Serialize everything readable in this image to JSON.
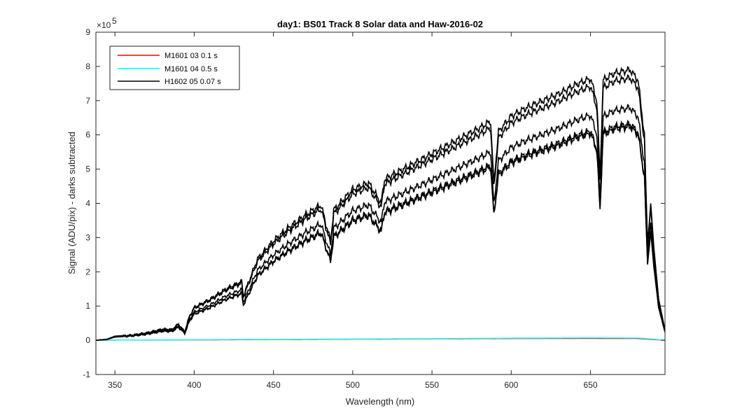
{
  "chart_data": {
    "type": "line",
    "title": "day1: BS01  Track 8 Solar data and Haw-2016-02",
    "xlabel": "Wavelength (nm)",
    "ylabel": "Signal (ADU/pix) - darks subtracted",
    "y_exponent_label": "×10",
    "y_exponent_power": "5",
    "xlim": [
      338,
      697
    ],
    "ylim": [
      -1,
      9
    ],
    "y_scale_factor": 100000,
    "grid": false,
    "legend_position": "top-left",
    "x_ticks": [
      "350",
      "400",
      "450",
      "500",
      "550",
      "600",
      "650"
    ],
    "x_tick_values": [
      350,
      400,
      450,
      500,
      550,
      600,
      650
    ],
    "y_ticks": [
      "-1",
      "0",
      "1",
      "2",
      "3",
      "4",
      "5",
      "6",
      "7",
      "8",
      "9"
    ],
    "y_tick_values": [
      -1,
      0,
      1,
      2,
      3,
      4,
      5,
      6,
      7,
      8,
      9
    ],
    "legend": [
      {
        "label": "M1601 03 0.1 s",
        "color": "#ff0000"
      },
      {
        "label": "M1601 04 0.5 s",
        "color": "#00ffff"
      },
      {
        "label": "H1602 05 0.07 s",
        "color": "#000000"
      }
    ],
    "series": [
      {
        "name": "M1601 03 0.1 s",
        "color": "#ff0000",
        "x": [
          338,
          350,
          400,
          450,
          500,
          550,
          600,
          650,
          680,
          690,
          697
        ],
        "values": [
          0,
          0.005,
          0.01,
          0.02,
          0.03,
          0.04,
          0.05,
          0.055,
          0.05,
          0.02,
          0
        ]
      },
      {
        "name": "M1601 04 0.5 s",
        "color": "#00ffff",
        "x": [
          338,
          350,
          400,
          450,
          500,
          550,
          600,
          650,
          680,
          690,
          697
        ],
        "values": [
          0,
          0.005,
          0.015,
          0.025,
          0.035,
          0.045,
          0.06,
          0.07,
          0.065,
          0.03,
          0
        ]
      },
      {
        "name": "H1602 05 0.07 s",
        "color": "#000000",
        "x": [
          338,
          345,
          350,
          360,
          370,
          380,
          386,
          390,
          394,
          397,
          400,
          410,
          420,
          430,
          431,
          440,
          450,
          460,
          470,
          480,
          486,
          488,
          500,
          510,
          518,
          520,
          530,
          540,
          550,
          560,
          570,
          580,
          587,
          589,
          592,
          600,
          610,
          620,
          630,
          640,
          650,
          654,
          656,
          658,
          665,
          675,
          680,
          684,
          686,
          688,
          690,
          693,
          697
        ],
        "values": [
          0,
          0.03,
          0.12,
          0.15,
          0.22,
          0.33,
          0.32,
          0.48,
          0.25,
          0.7,
          0.96,
          1.2,
          1.5,
          1.72,
          1.3,
          2.38,
          2.9,
          3.3,
          3.65,
          3.95,
          2.9,
          3.8,
          4.4,
          4.6,
          4.0,
          4.7,
          4.95,
          5.2,
          5.45,
          5.7,
          5.95,
          6.2,
          6.4,
          4.6,
          6.1,
          6.55,
          6.8,
          7.0,
          7.2,
          7.45,
          7.65,
          7.0,
          4.8,
          7.6,
          7.8,
          7.9,
          7.6,
          6.0,
          2.8,
          4.0,
          2.7,
          1.2,
          0.3
        ]
      }
    ],
    "extra_black_curve_scales": [
      1.0,
      0.97,
      0.86,
      0.8,
      0.79
    ]
  }
}
